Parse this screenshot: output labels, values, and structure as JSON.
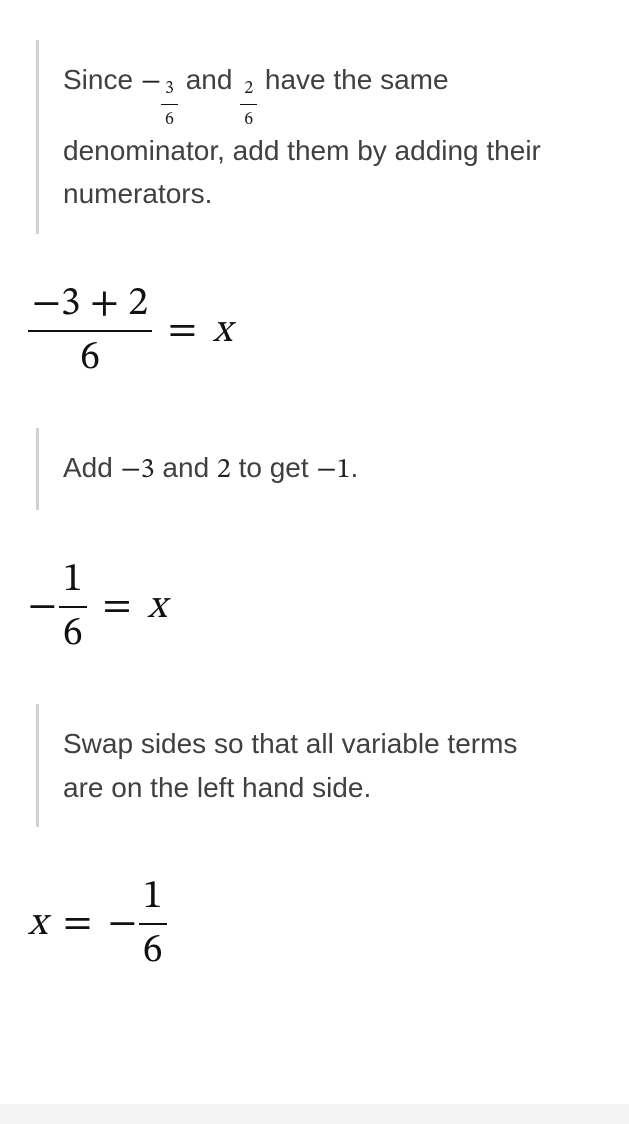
{
  "step1": {
    "text_parts": [
      "Since ",
      " and ",
      " have the same denominator, add them by adding their numerators."
    ],
    "frac_a_neg": "−",
    "frac_a_num": "3",
    "frac_a_den": "6",
    "frac_b_num": "2",
    "frac_b_den": "6"
  },
  "eq1": {
    "num": "−3 + 2",
    "den": "6",
    "eq": "=",
    "rhs": "x"
  },
  "step2": {
    "text_1": "Add ",
    "v1": "−3",
    "text_2": " and ",
    "v2": "2",
    "text_3": " to get ",
    "v3": "−1",
    "text_4": "."
  },
  "eq2": {
    "neg": "−",
    "num": "1",
    "den": "6",
    "eq": "=",
    "rhs": "x"
  },
  "step3": {
    "text": "Swap sides so that all variable terms are on the left hand side."
  },
  "eq3": {
    "lhs": "x",
    "eq": "=",
    "neg": "−",
    "num": "1",
    "den": "6"
  },
  "style": {
    "border_color": "#d1d1d1",
    "text_color": "#404040",
    "math_color": "#111111",
    "background": "#ffffff",
    "footer_bg": "#f4f4f4",
    "explain_fontsize": 28,
    "math_fontsize": 40
  }
}
